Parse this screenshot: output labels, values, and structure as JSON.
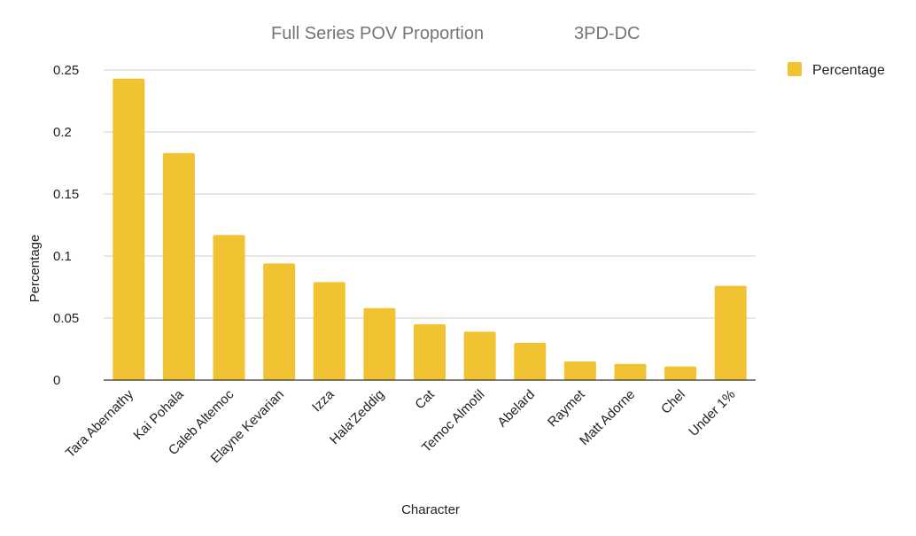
{
  "chart_data": {
    "type": "bar",
    "title": "Full Series POV Proportion",
    "subtitle": "3PD-DC",
    "xlabel": "Character",
    "ylabel": "Percentage",
    "categories": [
      "Tara Abernathy",
      "Kai Pohala",
      "Caleb Altemoc",
      "Elayne Kevarian",
      "Izza",
      "Hala'Zeddig",
      "Cat",
      "Temoc Almotil",
      "Abelard",
      "Raymet",
      "Matt Adorne",
      "Chel",
      "Under 1%"
    ],
    "series": [
      {
        "name": "Percentage",
        "color": "#f1c232",
        "values": [
          0.243,
          0.183,
          0.117,
          0.094,
          0.079,
          0.058,
          0.045,
          0.039,
          0.03,
          0.015,
          0.013,
          0.011,
          0.076
        ]
      }
    ],
    "ylim": [
      0,
      0.25
    ],
    "yticks": [
      "0",
      "0.05",
      "0.1",
      "0.15",
      "0.2",
      "0.25"
    ],
    "grid": true,
    "legend_position": "top-right"
  }
}
